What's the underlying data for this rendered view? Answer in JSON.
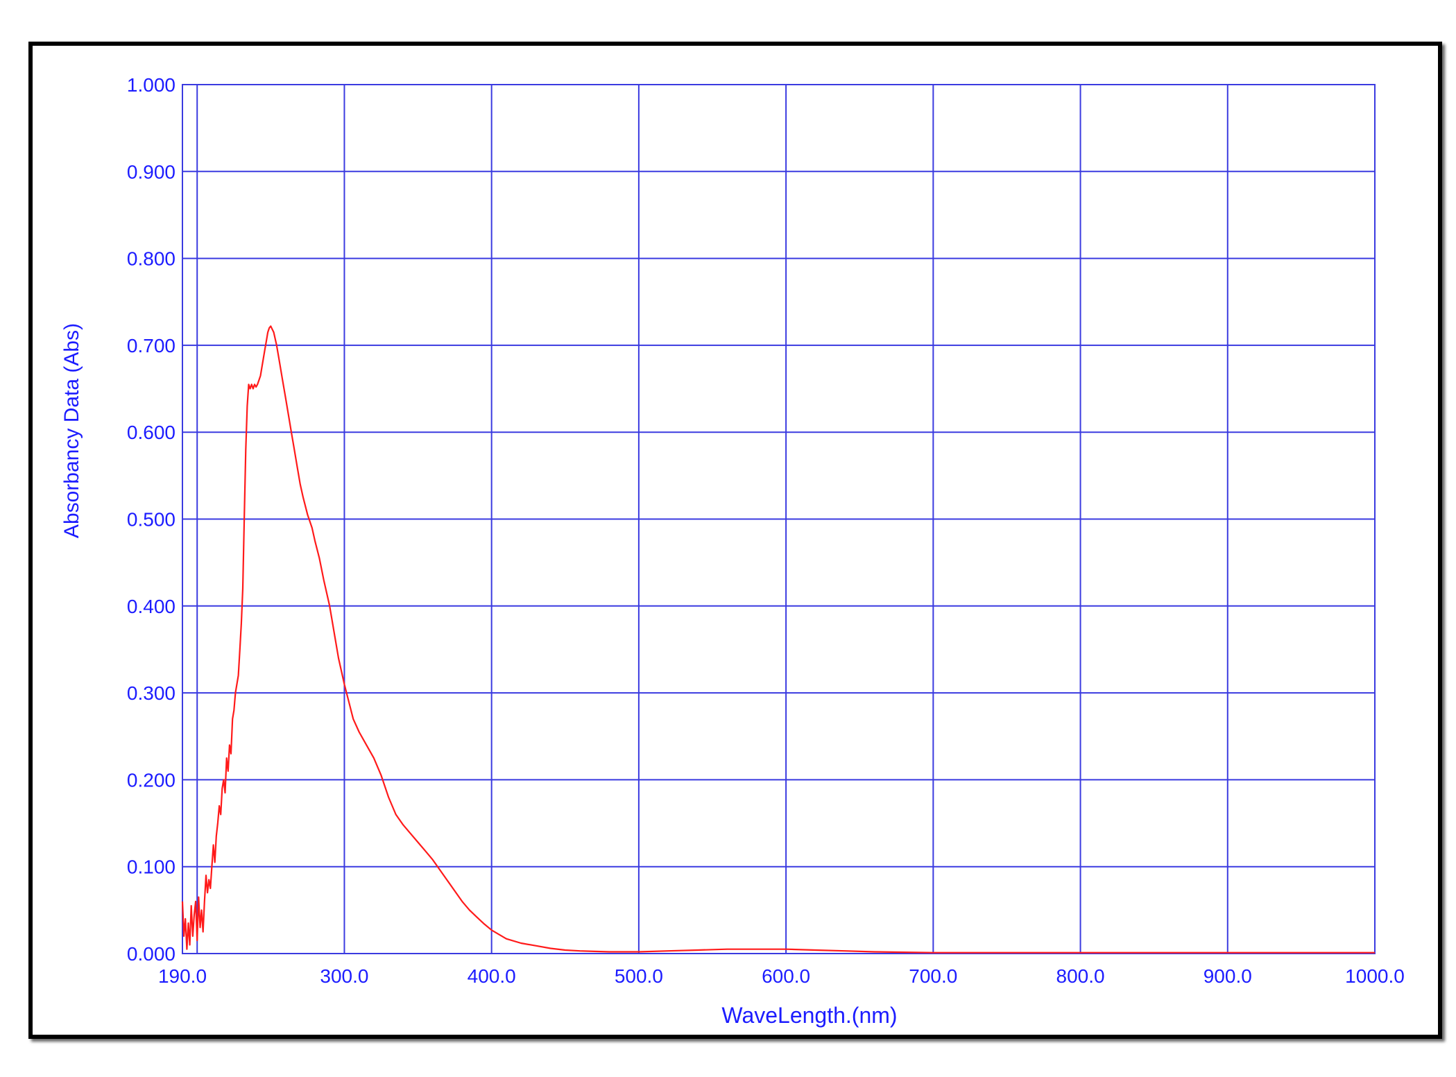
{
  "chart_data": {
    "type": "line",
    "title": "",
    "xlabel": "WaveLength.(nm)",
    "ylabel": "Absorbancy Data (Abs)",
    "xlim": [
      190,
      1000
    ],
    "ylim": [
      0,
      1
    ],
    "x_ticks": [
      190,
      300,
      400,
      500,
      600,
      700,
      800,
      900,
      1000
    ],
    "x_tick_labels": [
      "190.0",
      "300.0",
      "400.0",
      "500.0",
      "600.0",
      "700.0",
      "800.0",
      "900.0",
      "1000.0"
    ],
    "y_ticks": [
      0,
      0.1,
      0.2,
      0.3,
      0.4,
      0.5,
      0.6,
      0.7,
      0.8,
      0.9,
      1.0
    ],
    "y_tick_labels": [
      "0.000",
      "0.100",
      "0.200",
      "0.300",
      "0.400",
      "0.500",
      "0.600",
      "0.700",
      "0.800",
      "0.900",
      "1.000"
    ],
    "x_gridlines": [
      200,
      300,
      400,
      500,
      600,
      700,
      800,
      900
    ],
    "grid": true,
    "colors": {
      "axis": "#1c1cff",
      "grid": "#3a3ae0",
      "series": "#ff1a1a",
      "frame": "#000000"
    },
    "series": [
      {
        "name": "",
        "x": [
          190,
          191,
          192,
          193,
          194,
          195,
          196,
          197,
          198,
          199,
          200,
          201,
          202,
          203,
          204,
          205,
          206,
          207,
          208,
          209,
          210,
          211,
          212,
          213,
          214,
          215,
          216,
          217,
          218,
          219,
          220,
          221,
          222,
          223,
          224,
          225,
          226,
          227,
          228,
          229,
          230,
          231,
          232,
          233,
          234,
          235,
          236,
          237,
          238,
          239,
          240,
          241,
          242,
          243,
          244,
          245,
          246,
          247,
          248,
          249,
          250,
          252,
          254,
          256,
          258,
          260,
          262,
          264,
          266,
          268,
          270,
          272,
          275,
          278,
          280,
          283,
          286,
          290,
          293,
          296,
          300,
          303,
          306,
          310,
          315,
          320,
          325,
          330,
          335,
          340,
          345,
          350,
          355,
          360,
          365,
          370,
          375,
          380,
          385,
          390,
          395,
          400,
          405,
          410,
          420,
          430,
          440,
          450,
          460,
          470,
          480,
          500,
          520,
          540,
          560,
          580,
          600,
          620,
          640,
          660,
          680,
          700,
          750,
          800,
          850,
          900,
          950,
          1000
        ],
        "y": [
          0.06,
          0.02,
          0.04,
          0.005,
          0.035,
          0.01,
          0.055,
          0.02,
          0.045,
          0.06,
          0.015,
          0.065,
          0.03,
          0.05,
          0.025,
          0.06,
          0.09,
          0.07,
          0.085,
          0.075,
          0.1,
          0.125,
          0.105,
          0.135,
          0.15,
          0.17,
          0.16,
          0.19,
          0.2,
          0.185,
          0.225,
          0.21,
          0.24,
          0.23,
          0.27,
          0.28,
          0.3,
          0.31,
          0.32,
          0.35,
          0.38,
          0.42,
          0.5,
          0.58,
          0.63,
          0.655,
          0.65,
          0.655,
          0.65,
          0.655,
          0.652,
          0.655,
          0.66,
          0.665,
          0.675,
          0.685,
          0.695,
          0.705,
          0.715,
          0.72,
          0.722,
          0.715,
          0.7,
          0.68,
          0.66,
          0.64,
          0.62,
          0.6,
          0.58,
          0.56,
          0.54,
          0.525,
          0.505,
          0.49,
          0.475,
          0.455,
          0.43,
          0.4,
          0.37,
          0.34,
          0.31,
          0.29,
          0.27,
          0.255,
          0.24,
          0.225,
          0.205,
          0.18,
          0.16,
          0.148,
          0.138,
          0.128,
          0.118,
          0.108,
          0.096,
          0.084,
          0.072,
          0.06,
          0.05,
          0.042,
          0.034,
          0.027,
          0.022,
          0.017,
          0.012,
          0.009,
          0.006,
          0.004,
          0.003,
          0.0025,
          0.002,
          0.002,
          0.003,
          0.004,
          0.005,
          0.005,
          0.005,
          0.004,
          0.003,
          0.002,
          0.0015,
          0.001,
          0.001,
          0.001,
          0.001,
          0.001,
          0.001,
          0.001
        ]
      }
    ]
  }
}
